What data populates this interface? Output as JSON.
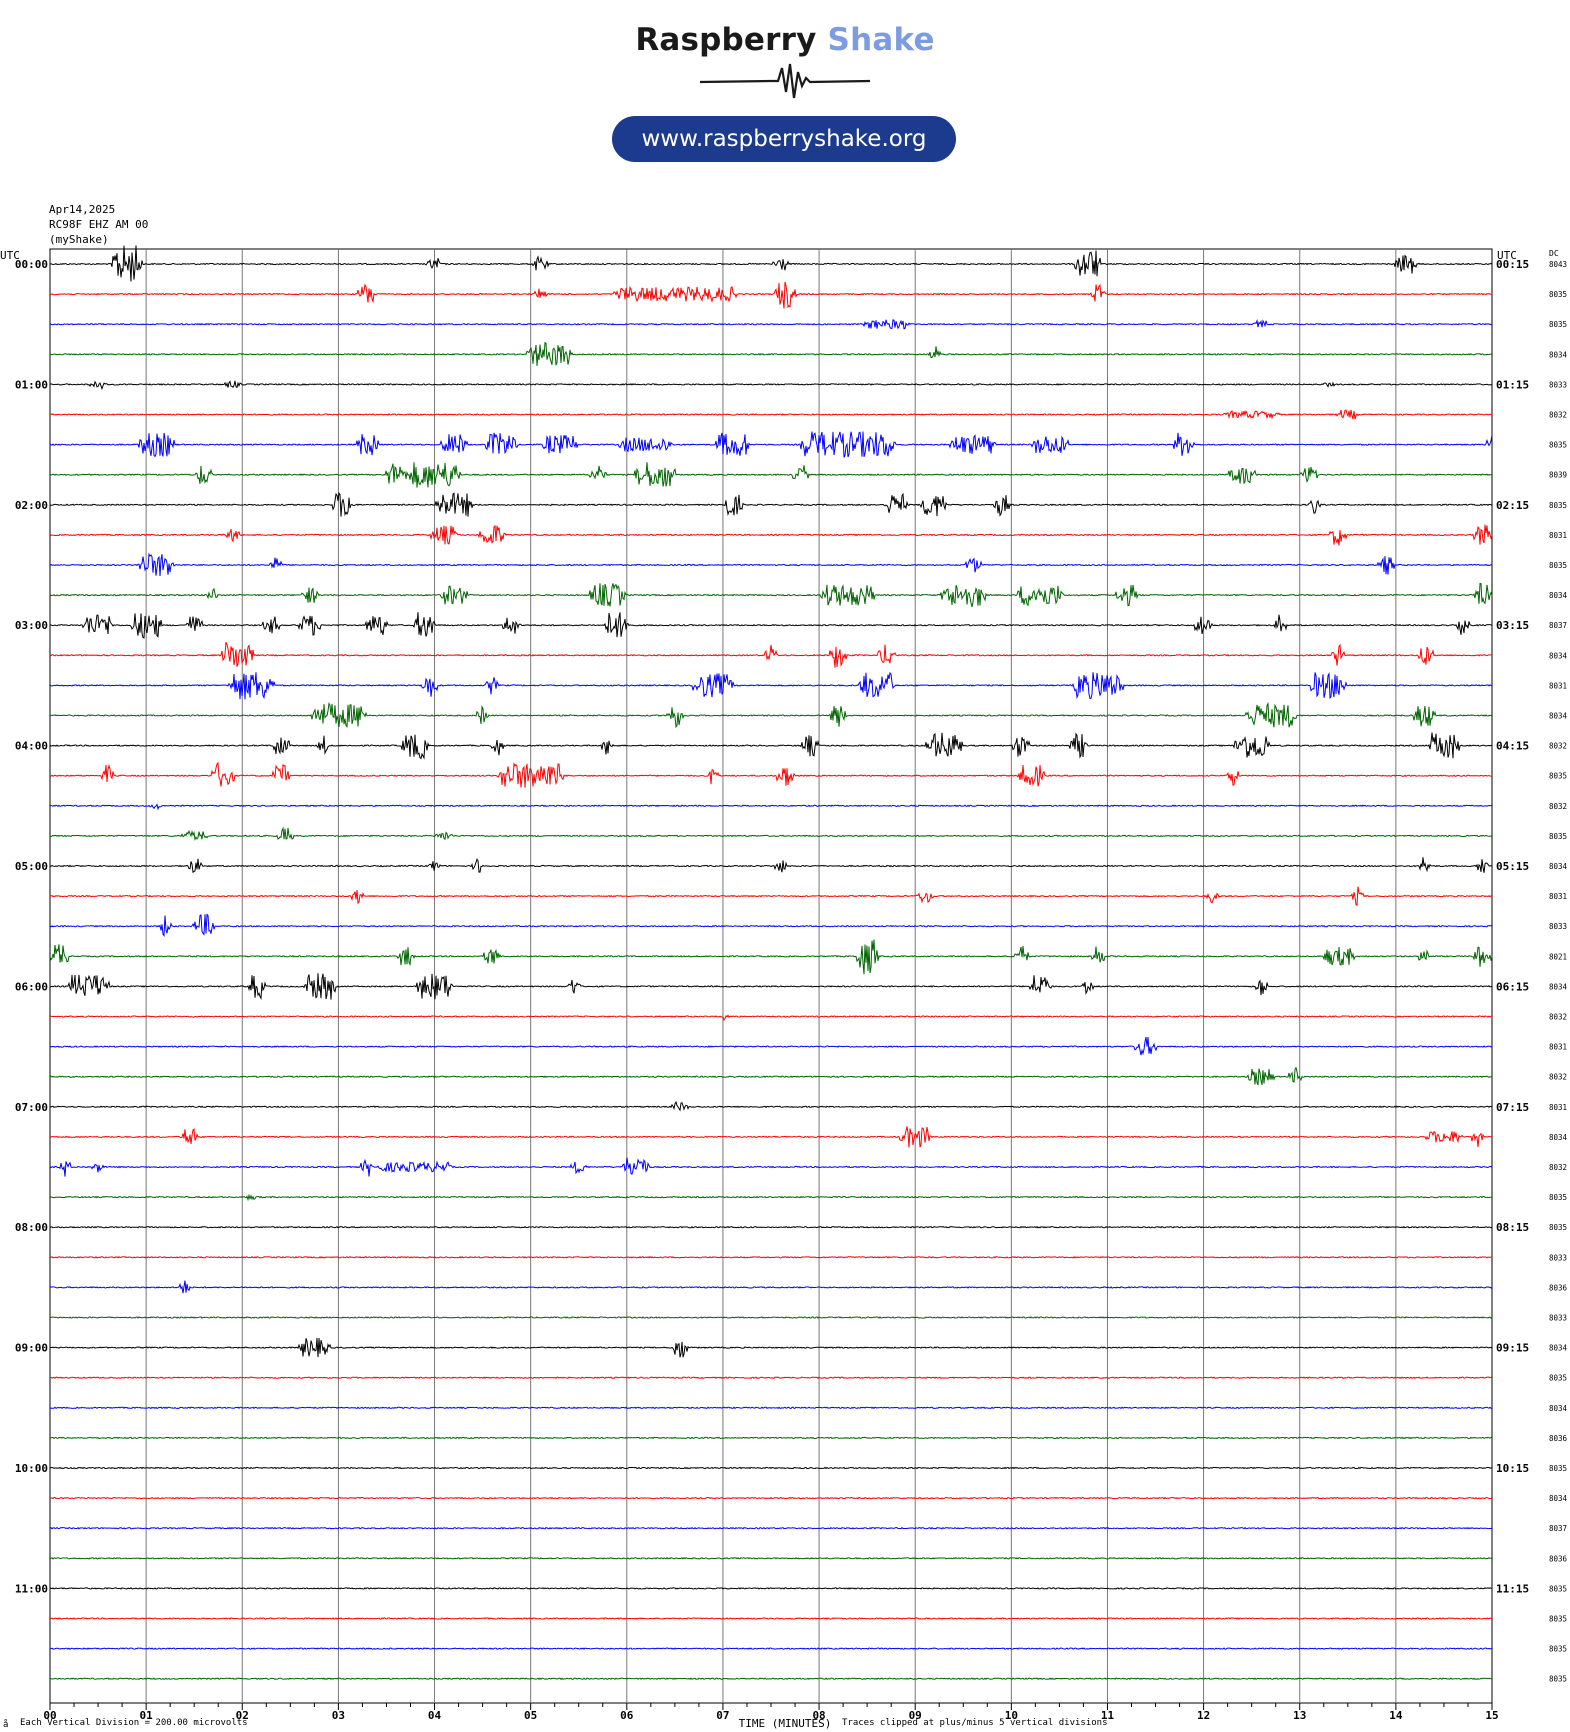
{
  "logo": {
    "brand_part1": "Raspberry",
    "brand_part2": "Shake",
    "url": "www.raspberryshake.org",
    "brand_colors": {
      "dark": "#1a1a1a",
      "light_blue": "#7d9be0",
      "pill": "#1c3a8e"
    }
  },
  "header": {
    "date": "Apr14,2025",
    "station": "RC98F EHZ AM 00",
    "source": "(myShake)"
  },
  "footer": {
    "vertical_division": "Each Vertical Division =  200.00 microvolts",
    "clip_note": "Traces clipped at plus/minus 5 vertical divisions",
    "corner_mark": "å"
  },
  "chart_data": {
    "type": "line",
    "title": "",
    "xlabel": "TIME (MINUTES)",
    "ylabel_left": "UTC",
    "ylabel_right": "UTC",
    "dc_label": "DC",
    "x_ticks": [
      "00",
      "01",
      "02",
      "03",
      "04",
      "05",
      "06",
      "07",
      "08",
      "09",
      "10",
      "11",
      "12",
      "13",
      "14",
      "15"
    ],
    "xlim": [
      0,
      15
    ],
    "grid": "vertical lines every minute",
    "minutes_per_row": 15,
    "row_colors": [
      "#000000",
      "#ff0000",
      "#0000ff",
      "#006400"
    ],
    "left_hour_labels": [
      "00:00",
      "01:00",
      "02:00",
      "03:00",
      "04:00",
      "05:00",
      "06:00",
      "07:00",
      "08:00",
      "09:00",
      "10:00",
      "11:00"
    ],
    "right_labels": [
      "00:15",
      "01:15",
      "02:15",
      "03:15",
      "04:15",
      "05:15",
      "06:15",
      "07:15",
      "08:15",
      "09:15",
      "10:15",
      "11:15"
    ],
    "dc_values": [
      "8043",
      "8035",
      "8035",
      "8034",
      "8033",
      "8032",
      "8035",
      "8039",
      "8035",
      "8031",
      "8035",
      "8034",
      "8037",
      "8034",
      "8031",
      "8034",
      "8032",
      "8035",
      "8032",
      "8035",
      "8034",
      "8031",
      "8033",
      "8021",
      "8034",
      "8032",
      "8031",
      "8032",
      "8031",
      "8034",
      "8032",
      "8035",
      "8035",
      "8033",
      "8036",
      "8033",
      "8034",
      "8035",
      "8034",
      "8036",
      "8035",
      "8034",
      "8037",
      "8036",
      "8035",
      "8035",
      "8035",
      "8035"
    ],
    "events": [
      [
        [
          0.8,
          0.25,
          1.6
        ],
        [
          4.0,
          0.1,
          0.5
        ],
        [
          5.1,
          0.1,
          0.6
        ],
        [
          7.6,
          0.1,
          0.6
        ],
        [
          10.8,
          0.2,
          1.2
        ],
        [
          14.1,
          0.15,
          0.8
        ]
      ],
      [
        [
          3.3,
          0.12,
          0.9
        ],
        [
          5.1,
          0.05,
          0.6
        ],
        [
          6.5,
          1.2,
          0.6
        ],
        [
          7.65,
          0.15,
          1.2
        ],
        [
          10.9,
          0.08,
          0.9
        ]
      ],
      [
        [
          8.7,
          0.4,
          0.4
        ],
        [
          12.6,
          0.1,
          0.3
        ]
      ],
      [
        [
          5.2,
          0.4,
          1.0
        ],
        [
          9.2,
          0.05,
          0.8
        ]
      ],
      [
        [
          0.5,
          0.1,
          0.4
        ],
        [
          1.9,
          0.1,
          0.3
        ],
        [
          13.3,
          0.05,
          0.3
        ]
      ],
      [
        [
          12.5,
          0.5,
          0.3
        ],
        [
          13.5,
          0.15,
          0.4
        ]
      ],
      [
        [
          1.1,
          0.3,
          1.0
        ],
        [
          3.3,
          0.15,
          0.9
        ],
        [
          4.2,
          0.2,
          0.9
        ],
        [
          4.7,
          0.25,
          1.0
        ],
        [
          5.3,
          0.3,
          0.8
        ],
        [
          6.2,
          0.5,
          0.6
        ],
        [
          7.1,
          0.3,
          1.0
        ],
        [
          8.3,
          0.9,
          1.1
        ],
        [
          9.6,
          0.4,
          0.8
        ],
        [
          10.4,
          0.3,
          0.8
        ],
        [
          11.8,
          0.15,
          1.0
        ],
        [
          15.0,
          0.05,
          0.9
        ]
      ],
      [
        [
          1.6,
          0.1,
          0.9
        ],
        [
          3.6,
          0.15,
          1.0
        ],
        [
          4.0,
          0.45,
          1.1
        ],
        [
          5.7,
          0.1,
          0.8
        ],
        [
          6.3,
          0.35,
          1.1
        ],
        [
          7.8,
          0.1,
          0.8
        ],
        [
          12.4,
          0.2,
          0.8
        ],
        [
          13.1,
          0.1,
          0.8
        ]
      ],
      [
        [
          3.05,
          0.15,
          1.1
        ],
        [
          4.2,
          0.3,
          1.0
        ],
        [
          7.1,
          0.15,
          0.9
        ],
        [
          8.8,
          0.15,
          0.9
        ],
        [
          9.2,
          0.2,
          1.0
        ],
        [
          9.9,
          0.1,
          0.9
        ],
        [
          13.15,
          0.05,
          0.9
        ]
      ],
      [
        [
          1.9,
          0.06,
          0.8
        ],
        [
          4.1,
          0.2,
          0.8
        ],
        [
          4.6,
          0.2,
          0.9
        ],
        [
          13.4,
          0.1,
          0.9
        ],
        [
          14.9,
          0.1,
          0.9
        ]
      ],
      [
        [
          1.1,
          0.3,
          1.0
        ],
        [
          2.35,
          0.05,
          0.7
        ],
        [
          9.6,
          0.1,
          0.7
        ],
        [
          13.9,
          0.1,
          0.8
        ]
      ],
      [
        [
          1.7,
          0.05,
          0.7
        ],
        [
          2.7,
          0.1,
          0.7
        ],
        [
          4.2,
          0.2,
          0.8
        ],
        [
          5.8,
          0.3,
          1.0
        ],
        [
          8.3,
          0.5,
          0.9
        ],
        [
          9.5,
          0.4,
          1.0
        ],
        [
          10.3,
          0.4,
          0.9
        ],
        [
          11.2,
          0.15,
          0.9
        ],
        [
          14.9,
          0.1,
          1.0
        ]
      ],
      [
        [
          0.5,
          0.25,
          0.9
        ],
        [
          1.0,
          0.25,
          1.1
        ],
        [
          1.5,
          0.1,
          0.8
        ],
        [
          2.3,
          0.1,
          0.8
        ],
        [
          2.7,
          0.15,
          0.9
        ],
        [
          3.4,
          0.15,
          0.9
        ],
        [
          3.9,
          0.15,
          1.1
        ],
        [
          4.8,
          0.1,
          0.8
        ],
        [
          5.9,
          0.2,
          1.1
        ],
        [
          12.0,
          0.1,
          1.0
        ],
        [
          12.8,
          0.05,
          0.9
        ],
        [
          14.7,
          0.05,
          0.8
        ]
      ],
      [
        [
          1.95,
          0.25,
          1.2
        ],
        [
          7.5,
          0.05,
          0.9
        ],
        [
          8.2,
          0.1,
          1.1
        ],
        [
          8.7,
          0.1,
          0.9
        ],
        [
          13.4,
          0.05,
          0.9
        ],
        [
          14.3,
          0.1,
          0.9
        ]
      ],
      [
        [
          2.1,
          0.4,
          1.2
        ],
        [
          3.95,
          0.1,
          1.0
        ],
        [
          4.6,
          0.05,
          0.8
        ],
        [
          6.9,
          0.35,
          1.0
        ],
        [
          8.6,
          0.3,
          1.1
        ],
        [
          10.9,
          0.45,
          1.1
        ],
        [
          13.3,
          0.3,
          1.1
        ]
      ],
      [
        [
          3.0,
          0.5,
          1.0
        ],
        [
          4.5,
          0.05,
          0.8
        ],
        [
          6.5,
          0.1,
          1.0
        ],
        [
          8.2,
          0.1,
          1.0
        ],
        [
          12.7,
          0.45,
          1.0
        ],
        [
          14.3,
          0.15,
          1.0
        ]
      ],
      [
        [
          2.4,
          0.1,
          1.0
        ],
        [
          2.85,
          0.05,
          0.9
        ],
        [
          3.8,
          0.2,
          1.1
        ],
        [
          4.65,
          0.05,
          0.8
        ],
        [
          5.8,
          0.05,
          0.8
        ],
        [
          7.9,
          0.1,
          0.9
        ],
        [
          9.3,
          0.3,
          1.1
        ],
        [
          10.1,
          0.1,
          1.0
        ],
        [
          10.7,
          0.1,
          1.0
        ],
        [
          12.5,
          0.3,
          1.1
        ],
        [
          14.5,
          0.25,
          1.1
        ]
      ],
      [
        [
          0.6,
          0.05,
          0.9
        ],
        [
          1.8,
          0.15,
          1.1
        ],
        [
          2.4,
          0.1,
          1.0
        ],
        [
          5.0,
          0.6,
          1.1
        ],
        [
          6.9,
          0.05,
          0.9
        ],
        [
          7.65,
          0.1,
          1.0
        ],
        [
          10.2,
          0.2,
          0.9
        ],
        [
          12.3,
          0.05,
          0.9
        ]
      ],
      [
        [
          1.1,
          0.05,
          0.3
        ]
      ],
      [
        [
          1.5,
          0.2,
          0.4
        ],
        [
          2.45,
          0.08,
          0.7
        ],
        [
          4.1,
          0.1,
          0.4
        ]
      ],
      [
        [
          1.5,
          0.1,
          0.6
        ],
        [
          4.0,
          0.05,
          0.6
        ],
        [
          4.45,
          0.05,
          0.6
        ],
        [
          7.6,
          0.05,
          0.7
        ],
        [
          14.3,
          0.05,
          0.8
        ],
        [
          14.9,
          0.05,
          1.0
        ]
      ],
      [
        [
          3.2,
          0.05,
          0.9
        ],
        [
          9.1,
          0.1,
          0.6
        ],
        [
          12.1,
          0.05,
          0.6
        ],
        [
          13.6,
          0.05,
          0.8
        ]
      ],
      [
        [
          1.2,
          0.05,
          0.9
        ],
        [
          1.6,
          0.15,
          1.0
        ]
      ],
      [
        [
          0.1,
          0.1,
          1.1
        ],
        [
          3.7,
          0.1,
          0.8
        ],
        [
          4.6,
          0.1,
          0.8
        ],
        [
          8.5,
          0.15,
          1.5
        ],
        [
          10.1,
          0.1,
          0.9
        ],
        [
          10.9,
          0.05,
          0.9
        ],
        [
          13.4,
          0.25,
          0.8
        ],
        [
          14.3,
          0.05,
          0.8
        ],
        [
          14.9,
          0.1,
          0.9
        ]
      ],
      [
        [
          0.4,
          0.35,
          1.0
        ],
        [
          2.15,
          0.1,
          1.0
        ],
        [
          2.8,
          0.25,
          1.1
        ],
        [
          4.0,
          0.3,
          1.1
        ],
        [
          5.45,
          0.05,
          0.8
        ],
        [
          10.3,
          0.15,
          1.0
        ],
        [
          10.8,
          0.05,
          0.9
        ],
        [
          12.6,
          0.05,
          0.9
        ]
      ],
      [
        [
          7.0,
          0.05,
          0.3
        ]
      ],
      [
        [
          11.4,
          0.15,
          0.8
        ]
      ],
      [
        [
          12.6,
          0.2,
          0.7
        ],
        [
          12.95,
          0.05,
          0.8
        ]
      ],
      [
        [
          6.55,
          0.1,
          0.4
        ]
      ],
      [
        [
          1.45,
          0.1,
          0.8
        ],
        [
          9.0,
          0.25,
          0.9
        ],
        [
          14.5,
          0.3,
          0.5
        ],
        [
          14.85,
          0.05,
          0.9
        ]
      ],
      [
        [
          0.15,
          0.05,
          0.9
        ],
        [
          0.5,
          0.05,
          0.6
        ],
        [
          3.3,
          0.05,
          0.8
        ],
        [
          3.8,
          0.7,
          0.4
        ],
        [
          5.5,
          0.1,
          0.5
        ],
        [
          6.1,
          0.2,
          0.9
        ]
      ],
      [
        [
          2.1,
          0.1,
          0.2
        ]
      ],
      [],
      [],
      [
        [
          1.4,
          0.05,
          0.8
        ]
      ],
      [],
      [
        [
          2.75,
          0.25,
          0.8
        ],
        [
          6.55,
          0.1,
          0.9
        ]
      ],
      [],
      [],
      [],
      [],
      [],
      [],
      [],
      [],
      [],
      [],
      []
    ]
  }
}
